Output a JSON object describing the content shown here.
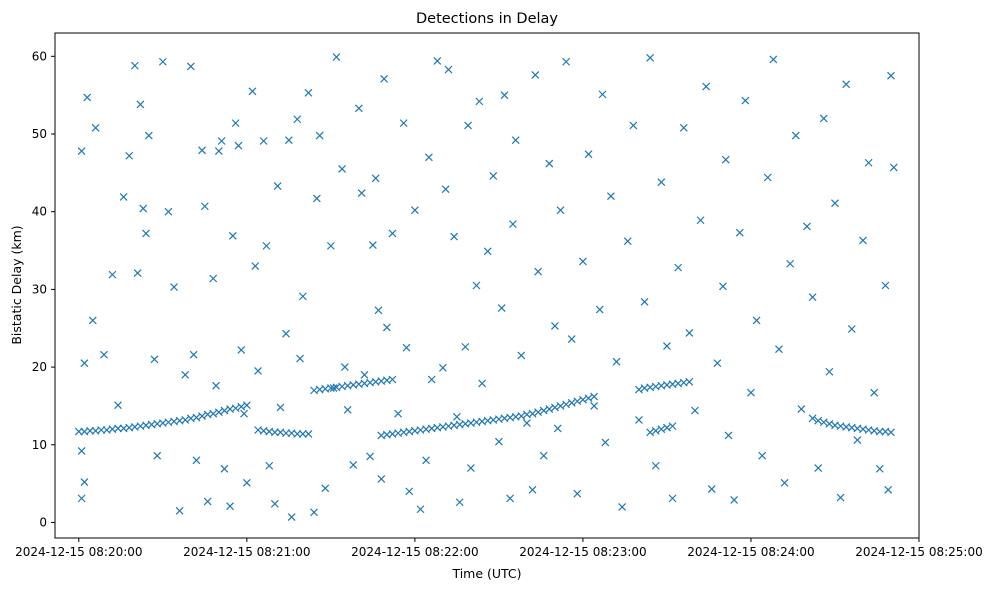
{
  "chart_data": {
    "type": "scatter",
    "title": "Detections in Delay",
    "xlabel": "Time (UTC)",
    "ylabel": "Bistatic Delay (km)",
    "x_unit": "seconds since 2024-12-15 08:20:00 UTC",
    "xlim": [
      -8.5,
      300
    ],
    "ylim": [
      -2,
      63
    ],
    "x_ticks": [
      {
        "value": 0,
        "label": "2024-12-15 08:20:00"
      },
      {
        "value": 60,
        "label": "2024-12-15 08:21:00"
      },
      {
        "value": 120,
        "label": "2024-12-15 08:22:00"
      },
      {
        "value": 180,
        "label": "2024-12-15 08:23:00"
      },
      {
        "value": 240,
        "label": "2024-12-15 08:24:00"
      },
      {
        "value": 300,
        "label": "2024-12-15 08:25:00"
      }
    ],
    "y_ticks": [
      {
        "value": 0,
        "label": "0"
      },
      {
        "value": 10,
        "label": "10"
      },
      {
        "value": 20,
        "label": "20"
      },
      {
        "value": 30,
        "label": "30"
      },
      {
        "value": 40,
        "label": "40"
      },
      {
        "value": 50,
        "label": "50"
      },
      {
        "value": 60,
        "label": "60"
      }
    ],
    "marker": "x",
    "color": "#1f77b4",
    "series": [
      {
        "name": "track-1",
        "points": [
          [
            0,
            11.7
          ],
          [
            2,
            11.7
          ],
          [
            4,
            11.8
          ],
          [
            6,
            11.8
          ],
          [
            8,
            11.9
          ],
          [
            10,
            11.9
          ],
          [
            12,
            12.0
          ],
          [
            14,
            12.1
          ],
          [
            16,
            12.1
          ],
          [
            18,
            12.2
          ],
          [
            20,
            12.3
          ],
          [
            22,
            12.4
          ],
          [
            24,
            12.5
          ],
          [
            26,
            12.6
          ],
          [
            28,
            12.7
          ],
          [
            30,
            12.8
          ],
          [
            32,
            12.9
          ],
          [
            34,
            13.0
          ],
          [
            36,
            13.1
          ],
          [
            38,
            13.2
          ],
          [
            40,
            13.4
          ],
          [
            42,
            13.5
          ],
          [
            44,
            13.7
          ],
          [
            46,
            13.9
          ],
          [
            48,
            14.0
          ],
          [
            50,
            14.2
          ],
          [
            52,
            14.4
          ],
          [
            54,
            14.6
          ],
          [
            56,
            14.7
          ],
          [
            58,
            14.9
          ],
          [
            60,
            15.1
          ]
        ]
      },
      {
        "name": "track-2",
        "points": [
          [
            64,
            11.9
          ],
          [
            66,
            11.8
          ],
          [
            68,
            11.7
          ],
          [
            70,
            11.6
          ],
          [
            72,
            11.6
          ],
          [
            74,
            11.5
          ],
          [
            76,
            11.5
          ],
          [
            78,
            11.4
          ],
          [
            80,
            11.4
          ],
          [
            82,
            11.4
          ]
        ]
      },
      {
        "name": "track-3",
        "points": [
          [
            84,
            17.0
          ],
          [
            86,
            17.1
          ],
          [
            88,
            17.2
          ],
          [
            90,
            17.3
          ],
          [
            92,
            17.4
          ],
          [
            94,
            17.5
          ],
          [
            96,
            17.6
          ],
          [
            98,
            17.7
          ],
          [
            100,
            17.8
          ],
          [
            102,
            17.9
          ],
          [
            104,
            18.0
          ],
          [
            106,
            18.1
          ],
          [
            108,
            18.2
          ],
          [
            110,
            18.3
          ],
          [
            112,
            18.4
          ]
        ]
      },
      {
        "name": "track-4",
        "points": [
          [
            108,
            11.2
          ],
          [
            110,
            11.3
          ],
          [
            112,
            11.4
          ],
          [
            114,
            11.5
          ],
          [
            116,
            11.6
          ],
          [
            118,
            11.7
          ],
          [
            120,
            11.8
          ],
          [
            122,
            11.9
          ],
          [
            124,
            12.0
          ],
          [
            126,
            12.1
          ],
          [
            128,
            12.2
          ],
          [
            130,
            12.3
          ],
          [
            132,
            12.4
          ],
          [
            134,
            12.5
          ],
          [
            136,
            12.6
          ],
          [
            138,
            12.7
          ],
          [
            140,
            12.8
          ],
          [
            142,
            12.9
          ],
          [
            144,
            13.0
          ],
          [
            146,
            13.1
          ],
          [
            148,
            13.2
          ],
          [
            150,
            13.3
          ],
          [
            152,
            13.4
          ],
          [
            154,
            13.5
          ],
          [
            156,
            13.6
          ],
          [
            158,
            13.7
          ],
          [
            160,
            13.9
          ],
          [
            162,
            14.0
          ],
          [
            164,
            14.2
          ],
          [
            166,
            14.4
          ],
          [
            168,
            14.6
          ],
          [
            170,
            14.8
          ],
          [
            172,
            15.0
          ],
          [
            174,
            15.2
          ],
          [
            176,
            15.4
          ],
          [
            178,
            15.6
          ],
          [
            180,
            15.8
          ],
          [
            182,
            16.0
          ],
          [
            184,
            16.2
          ]
        ]
      },
      {
        "name": "track-5",
        "points": [
          [
            200,
            17.1
          ],
          [
            202,
            17.3
          ],
          [
            204,
            17.4
          ],
          [
            206,
            17.5
          ],
          [
            208,
            17.6
          ],
          [
            210,
            17.7
          ],
          [
            212,
            17.8
          ],
          [
            214,
            17.9
          ],
          [
            216,
            18.0
          ],
          [
            218,
            18.1
          ]
        ]
      },
      {
        "name": "track-6",
        "points": [
          [
            204,
            11.6
          ],
          [
            206,
            11.8
          ],
          [
            208,
            12.0
          ],
          [
            210,
            12.2
          ],
          [
            212,
            12.4
          ]
        ]
      },
      {
        "name": "track-7",
        "points": [
          [
            262,
            13.4
          ],
          [
            264,
            13.1
          ],
          [
            266,
            12.9
          ],
          [
            268,
            12.7
          ],
          [
            270,
            12.5
          ],
          [
            272,
            12.4
          ],
          [
            274,
            12.3
          ],
          [
            276,
            12.2
          ],
          [
            278,
            12.1
          ],
          [
            280,
            12.0
          ],
          [
            282,
            11.9
          ],
          [
            284,
            11.8
          ],
          [
            286,
            11.7
          ],
          [
            288,
            11.7
          ],
          [
            290,
            11.6
          ]
        ]
      },
      {
        "name": "noise",
        "points": [
          [
            1,
            47.8
          ],
          [
            3,
            54.7
          ],
          [
            2,
            20.5
          ],
          [
            1,
            9.2
          ],
          [
            2,
            5.2
          ],
          [
            1,
            3.1
          ],
          [
            5,
            26.0
          ],
          [
            6,
            50.8
          ],
          [
            9,
            21.6
          ],
          [
            12,
            31.9
          ],
          [
            14,
            15.1
          ],
          [
            16,
            41.9
          ],
          [
            18,
            47.2
          ],
          [
            20,
            58.8
          ],
          [
            21,
            32.1
          ],
          [
            22,
            53.8
          ],
          [
            23,
            40.4
          ],
          [
            24,
            37.2
          ],
          [
            25,
            49.8
          ],
          [
            27,
            21.0
          ],
          [
            28,
            8.6
          ],
          [
            30,
            59.3
          ],
          [
            32,
            40.0
          ],
          [
            34,
            30.3
          ],
          [
            36,
            1.5
          ],
          [
            38,
            19.0
          ],
          [
            40,
            58.7
          ],
          [
            41,
            21.6
          ],
          [
            42,
            8.0
          ],
          [
            44,
            47.9
          ],
          [
            45,
            40.7
          ],
          [
            46,
            2.7
          ],
          [
            48,
            31.4
          ],
          [
            49,
            17.6
          ],
          [
            50,
            47.8
          ],
          [
            51,
            49.1
          ],
          [
            52,
            6.9
          ],
          [
            54,
            2.1
          ],
          [
            55,
            36.9
          ],
          [
            56,
            51.4
          ],
          [
            57,
            48.5
          ],
          [
            58,
            22.2
          ],
          [
            59,
            14.0
          ],
          [
            60,
            5.1
          ],
          [
            62,
            55.5
          ],
          [
            63,
            33.0
          ],
          [
            64,
            19.5
          ],
          [
            66,
            49.1
          ],
          [
            67,
            35.6
          ],
          [
            68,
            7.3
          ],
          [
            70,
            2.4
          ],
          [
            71,
            43.3
          ],
          [
            72,
            14.8
          ],
          [
            74,
            24.3
          ],
          [
            75,
            49.2
          ],
          [
            76,
            0.7
          ],
          [
            78,
            51.9
          ],
          [
            79,
            21.1
          ],
          [
            80,
            29.1
          ],
          [
            82,
            55.3
          ],
          [
            84,
            1.3
          ],
          [
            85,
            41.7
          ],
          [
            86,
            49.8
          ],
          [
            88,
            4.4
          ],
          [
            90,
            35.6
          ],
          [
            91,
            17.3
          ],
          [
            92,
            59.9
          ],
          [
            94,
            45.5
          ],
          [
            95,
            20.0
          ],
          [
            96,
            14.5
          ],
          [
            98,
            7.4
          ],
          [
            100,
            53.3
          ],
          [
            101,
            42.4
          ],
          [
            102,
            19.0
          ],
          [
            104,
            8.5
          ],
          [
            105,
            35.7
          ],
          [
            106,
            44.3
          ],
          [
            107,
            27.3
          ],
          [
            108,
            5.6
          ],
          [
            109,
            57.1
          ],
          [
            110,
            25.1
          ],
          [
            112,
            37.2
          ],
          [
            114,
            14.0
          ],
          [
            116,
            51.4
          ],
          [
            117,
            22.5
          ],
          [
            118,
            4.0
          ],
          [
            120,
            40.2
          ],
          [
            122,
            1.7
          ],
          [
            124,
            8.0
          ],
          [
            125,
            47.0
          ],
          [
            126,
            18.4
          ],
          [
            128,
            59.4
          ],
          [
            130,
            19.9
          ],
          [
            131,
            42.9
          ],
          [
            132,
            58.3
          ],
          [
            134,
            36.8
          ],
          [
            135,
            13.6
          ],
          [
            136,
            2.6
          ],
          [
            138,
            22.6
          ],
          [
            139,
            51.1
          ],
          [
            140,
            7.0
          ],
          [
            142,
            30.5
          ],
          [
            143,
            54.2
          ],
          [
            144,
            17.9
          ],
          [
            146,
            34.9
          ],
          [
            148,
            44.6
          ],
          [
            150,
            10.4
          ],
          [
            151,
            27.6
          ],
          [
            152,
            55.0
          ],
          [
            154,
            3.1
          ],
          [
            155,
            38.4
          ],
          [
            156,
            49.2
          ],
          [
            158,
            21.5
          ],
          [
            160,
            12.8
          ],
          [
            162,
            4.2
          ],
          [
            163,
            57.6
          ],
          [
            164,
            32.3
          ],
          [
            166,
            8.6
          ],
          [
            168,
            46.2
          ],
          [
            170,
            25.3
          ],
          [
            171,
            12.1
          ],
          [
            172,
            40.2
          ],
          [
            174,
            59.3
          ],
          [
            176,
            23.6
          ],
          [
            178,
            3.7
          ],
          [
            180,
            33.6
          ],
          [
            182,
            47.4
          ],
          [
            184,
            15.0
          ],
          [
            186,
            27.4
          ],
          [
            187,
            55.1
          ],
          [
            188,
            10.3
          ],
          [
            190,
            42.0
          ],
          [
            192,
            20.7
          ],
          [
            194,
            2.0
          ],
          [
            196,
            36.2
          ],
          [
            198,
            51.1
          ],
          [
            200,
            13.2
          ],
          [
            202,
            28.4
          ],
          [
            204,
            59.8
          ],
          [
            206,
            7.3
          ],
          [
            208,
            43.8
          ],
          [
            210,
            22.7
          ],
          [
            212,
            3.1
          ],
          [
            214,
            32.8
          ],
          [
            216,
            50.8
          ],
          [
            218,
            24.4
          ],
          [
            220,
            14.4
          ],
          [
            222,
            38.9
          ],
          [
            224,
            56.1
          ],
          [
            226,
            4.3
          ],
          [
            228,
            20.5
          ],
          [
            230,
            30.4
          ],
          [
            231,
            46.7
          ],
          [
            232,
            11.2
          ],
          [
            234,
            2.9
          ],
          [
            236,
            37.3
          ],
          [
            238,
            54.3
          ],
          [
            240,
            16.7
          ],
          [
            242,
            26.0
          ],
          [
            244,
            8.6
          ],
          [
            246,
            44.4
          ],
          [
            248,
            59.6
          ],
          [
            250,
            22.3
          ],
          [
            252,
            5.1
          ],
          [
            254,
            33.3
          ],
          [
            256,
            49.8
          ],
          [
            258,
            14.6
          ],
          [
            260,
            38.1
          ],
          [
            262,
            29.0
          ],
          [
            264,
            7.0
          ],
          [
            266,
            52.0
          ],
          [
            268,
            19.4
          ],
          [
            270,
            41.1
          ],
          [
            272,
            3.2
          ],
          [
            274,
            56.4
          ],
          [
            276,
            24.9
          ],
          [
            278,
            10.6
          ],
          [
            280,
            36.3
          ],
          [
            282,
            46.3
          ],
          [
            284,
            16.7
          ],
          [
            286,
            6.9
          ],
          [
            288,
            30.5
          ],
          [
            290,
            57.5
          ],
          [
            291,
            45.7
          ],
          [
            289,
            4.2
          ]
        ]
      }
    ]
  }
}
